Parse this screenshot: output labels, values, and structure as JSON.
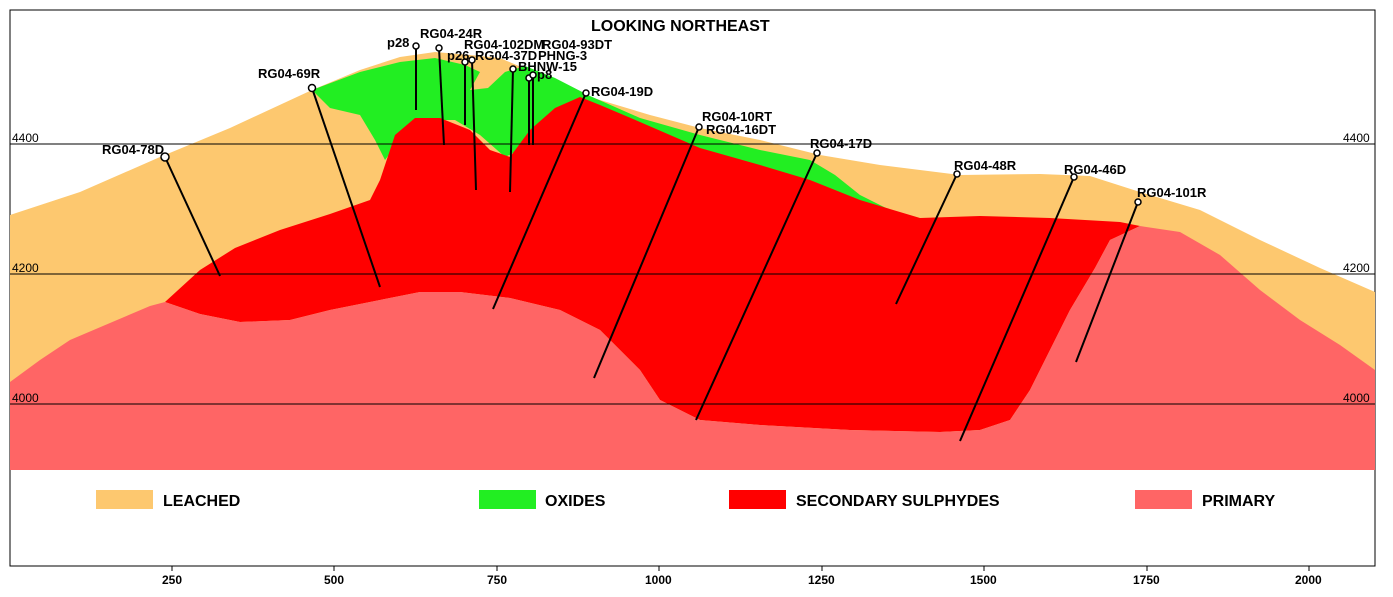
{
  "title": "LOOKING NORTHEAST",
  "x_axis_ticks": [
    "250",
    "500",
    "750",
    "1000",
    "1250",
    "1500",
    "1750",
    "2000"
  ],
  "elevation_labels": {
    "left": [
      "4400",
      "4200",
      "4000"
    ],
    "right": [
      "4400",
      "4200",
      "4000"
    ]
  },
  "legend": [
    {
      "label": "LEACHED",
      "color": "#fdc86f"
    },
    {
      "label": "OXIDES",
      "color": "#22ee22"
    },
    {
      "label": "SECONDARY SULPHYDES",
      "color": "#ff0000"
    },
    {
      "label": "PRIMARY",
      "color": "#ff6565"
    }
  ],
  "drillholes": [
    "p28",
    "RG04-24R",
    "RG04-102DM",
    "RG04-93DT",
    "p26",
    "RG04-37D",
    "PHNG-3",
    "BHNW-15",
    "p8",
    "RG04-69R",
    "RG04-78D",
    "RG04-19D",
    "RG04-10RT",
    "RG04-16DT",
    "RG04-17D",
    "RG04-48R",
    "RG04-46D",
    "RG04-101R"
  ],
  "chart_data": {
    "type": "cross-section",
    "title": "LOOKING NORTHEAST",
    "x_ticks": [
      250,
      500,
      750,
      1000,
      1250,
      1500,
      1750,
      2000
    ],
    "elevation_ticks": [
      4400,
      4200,
      4000
    ],
    "units": [
      "LEACHED",
      "OXIDES",
      "SECONDARY SULPHYDES",
      "PRIMARY"
    ]
  }
}
